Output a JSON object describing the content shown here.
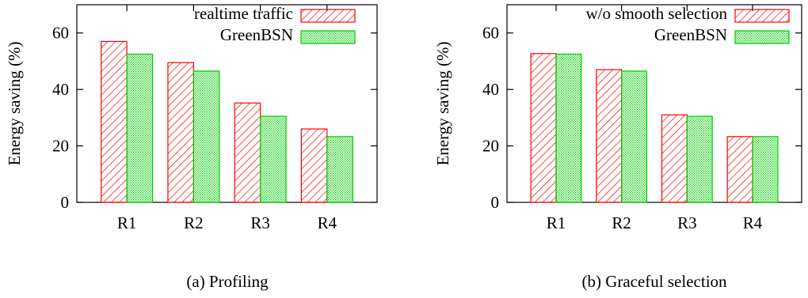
{
  "chart_data": [
    {
      "type": "bar",
      "caption": "(a) Profiling",
      "ylabel": "Energy saving (%)",
      "ylim": [
        0,
        70
      ],
      "yticks": [
        0,
        20,
        40,
        60
      ],
      "categories": [
        "R1",
        "R2",
        "R3",
        "R4"
      ],
      "legend_position": "top-right",
      "series": [
        {
          "name": "realtime traffic",
          "values": [
            57,
            49.5,
            35.2,
            26
          ],
          "color": "#ff0000",
          "pattern": "diagonal-hatch"
        },
        {
          "name": "GreenBSN",
          "values": [
            52.5,
            46.5,
            30.5,
            23.3
          ],
          "color": "#00cc00",
          "pattern": "dots"
        }
      ]
    },
    {
      "type": "bar",
      "caption": "(b) Graceful selection",
      "ylabel": "Energy saving (%)",
      "ylim": [
        0,
        70
      ],
      "yticks": [
        0,
        20,
        40,
        60
      ],
      "categories": [
        "R1",
        "R2",
        "R3",
        "R4"
      ],
      "legend_position": "top-right",
      "series": [
        {
          "name": "w/o smooth selection",
          "values": [
            52.7,
            47,
            31,
            23.3
          ],
          "color": "#ff0000",
          "pattern": "diagonal-hatch"
        },
        {
          "name": "GreenBSN",
          "values": [
            52.5,
            46.5,
            30.5,
            23.3
          ],
          "color": "#00cc00",
          "pattern": "dots"
        }
      ]
    }
  ]
}
